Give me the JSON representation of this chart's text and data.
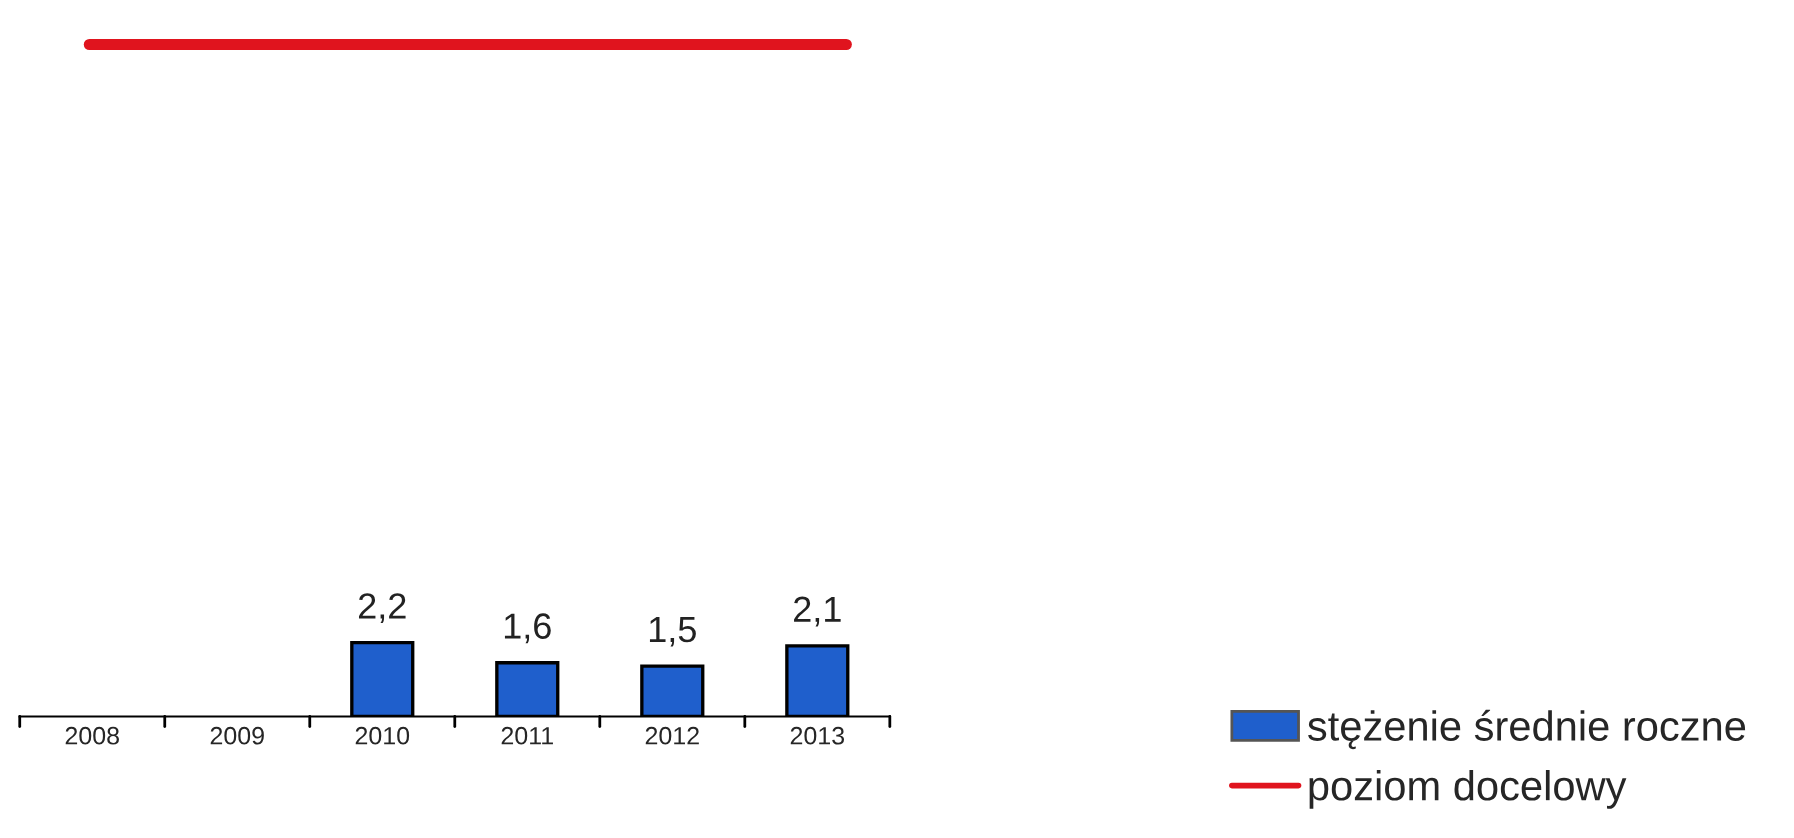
{
  "chart_data": {
    "type": "bar",
    "categories": [
      "2008",
      "2009",
      "2010",
      "2011",
      "2012",
      "2013"
    ],
    "series": [
      {
        "name": "stężenie średnie roczne",
        "color": "#1f5fcc",
        "values": [
          null,
          null,
          2.2,
          1.6,
          1.5,
          2.1
        ],
        "value_labels": [
          null,
          null,
          "2,2",
          "1,6",
          "1,5",
          "2,1"
        ]
      }
    ],
    "ref_lines": [
      {
        "axis": "y",
        "value": 20,
        "label": "poziom docelowy",
        "color": "#e0141e"
      }
    ],
    "tick_labels": "x",
    "grid": false,
    "legend": "bottom right"
  }
}
